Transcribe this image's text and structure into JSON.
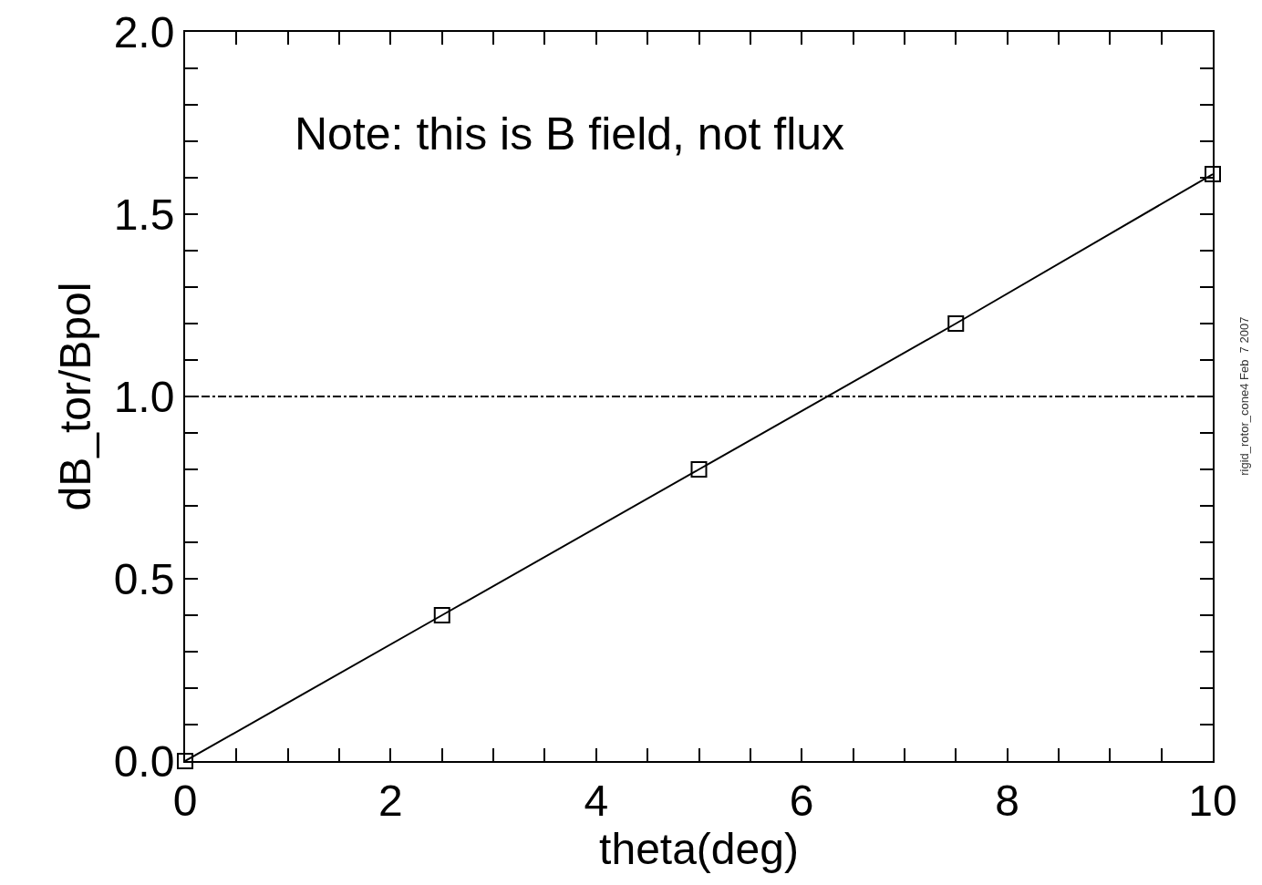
{
  "chart_data": {
    "type": "line",
    "xlabel": "theta(deg)",
    "ylabel": "dB_tor/Bpol",
    "x": [
      0,
      2.5,
      5,
      7.5,
      10
    ],
    "series": [
      {
        "color": "#000000",
        "values": [
          0,
          0.4,
          0.8,
          1.2,
          1.61
        ]
      }
    ],
    "marker": "square",
    "line_style": "solid",
    "grid": false,
    "xlim": [
      0,
      10
    ],
    "ylim": [
      0,
      2
    ],
    "xticks": [
      0,
      {
        "value": 0.5,
        "label": null
      },
      {
        "value": 1,
        "label": null
      },
      {
        "value": 1.5,
        "label": null
      },
      2,
      {
        "value": 2.5,
        "label": null
      },
      {
        "value": 3,
        "label": null
      },
      {
        "value": 3.5,
        "label": null
      },
      4,
      {
        "value": 4.5,
        "label": null
      },
      {
        "value": 5,
        "label": null
      },
      {
        "value": 5.5,
        "label": null
      },
      6,
      {
        "value": 6.5,
        "label": null
      },
      {
        "value": 7,
        "label": null
      },
      {
        "value": 7.5,
        "label": null
      },
      8,
      {
        "value": 8.5,
        "label": null
      },
      {
        "value": 9,
        "label": null
      },
      {
        "value": 9.5,
        "label": null
      },
      10
    ],
    "yticks": [
      {
        "value": 0,
        "label": "0.0"
      },
      {
        "value": 0.1,
        "label": null
      },
      {
        "value": 0.2,
        "label": null
      },
      {
        "value": 0.3,
        "label": null
      },
      {
        "value": 0.4,
        "label": null
      },
      0.5,
      {
        "value": 0.6,
        "label": null
      },
      {
        "value": 0.7,
        "label": null
      },
      {
        "value": 0.8,
        "label": null
      },
      {
        "value": 0.9,
        "label": null
      },
      {
        "value": 1,
        "label": "1.0"
      },
      {
        "value": 1.1,
        "label": null
      },
      {
        "value": 1.2,
        "label": null
      },
      {
        "value": 1.3,
        "label": null
      },
      {
        "value": 1.4,
        "label": null
      },
      1.5,
      {
        "value": 1.6,
        "label": null
      },
      {
        "value": 1.7,
        "label": null
      },
      {
        "value": 1.8,
        "label": null
      },
      {
        "value": 1.9,
        "label": null
      },
      {
        "value": 2,
        "label": "2.0"
      }
    ],
    "ref_lines": [
      {
        "axis": "y",
        "value": 1,
        "line_style": "dashdot",
        "color": "#000000"
      }
    ],
    "annotations": [
      "Note: this is B field, not flux",
      "rigid_rotor_cone4 Feb  7 2007"
    ]
  }
}
